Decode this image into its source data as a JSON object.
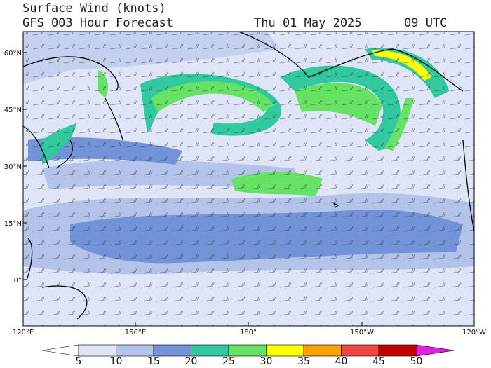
{
  "header": {
    "title": "Surface Wind (knots)",
    "subtitle": "GFS 003 Hour Forecast",
    "date": "Thu 01 May 2025",
    "time": "09 UTC"
  },
  "map": {
    "lat_labels": [
      "60°N",
      "45°N",
      "30°N",
      "15°N",
      "0°"
    ],
    "lon_labels": [
      "120°E",
      "150°E",
      "180°",
      "150°W",
      "120°W"
    ]
  },
  "colorbar": {
    "ticks": [
      5,
      10,
      15,
      20,
      25,
      30,
      35,
      40,
      45,
      50
    ],
    "colors": [
      "#ffffff",
      "#dfe5f6",
      "#b3c3ea",
      "#7393d9",
      "#32c9a1",
      "#66e265",
      "#ffff00",
      "#ffa200",
      "#ee4545",
      "#c20000",
      "#e020e0"
    ]
  }
}
